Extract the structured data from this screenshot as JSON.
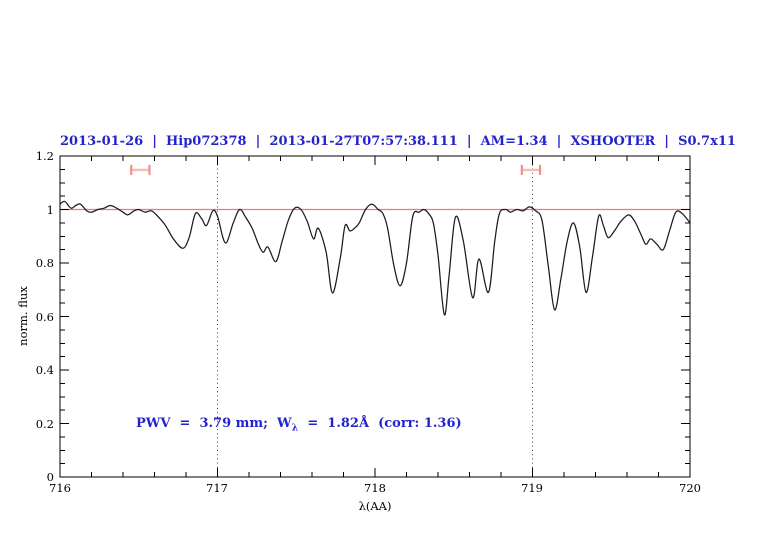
{
  "chart_data": {
    "type": "line",
    "title": "2013-01-26  |  Hip072378  |  2013-01-27T07:57:38.111  |  AM=1.34  |  XSHOOTER  |  S0.7x11",
    "xlabel": "λ(AA)",
    "ylabel": "norm. flux",
    "xlim": [
      716,
      720
    ],
    "ylim": [
      0,
      1.2
    ],
    "x_tick_labels": [
      "716",
      "717",
      "718",
      "719",
      "720"
    ],
    "x_major_ticks": [
      716,
      717,
      718,
      719,
      720
    ],
    "x_minor_step": 0.2,
    "y_tick_labels_top_down": [
      "1.2",
      "1",
      "0.8",
      "0.6",
      "0.4",
      "0.2",
      "0"
    ],
    "y_major_ticks": [
      0,
      0.2,
      0.4,
      0.6,
      0.8,
      1.0,
      1.2
    ],
    "y_minor_step": 0.05,
    "grid": "off",
    "guide_lines_x": [
      717,
      719
    ],
    "continuum_y": 1.0,
    "annotation": {
      "prefix": "PWV  =  3.79 mm;  W",
      "sub": "λ",
      "suffix": "  =  1.82Å  (corr: 1.36)"
    },
    "range_markers": [
      {
        "center": 716.51,
        "half_width": 0.058,
        "y": 1.148,
        "cap_half_height_flux": 0.019
      },
      {
        "center": 718.99,
        "half_width": 0.058,
        "y": 1.148,
        "cap_half_height_flux": 0.019
      }
    ],
    "colors": {
      "title_blue": "#2323cd",
      "annotation_blue": "#2323cd",
      "continuum_red": "#ee7a70",
      "marker_cap_red": "#f0908a",
      "marker_bar_red": "#f8bcb6",
      "spectrum_black": "#1c1c1c",
      "guide_gray": "#3a3a3a",
      "axis_black": "#000000"
    },
    "spectrum": [
      [
        716.0,
        1.02
      ],
      [
        716.03,
        1.03
      ],
      [
        716.07,
        1.005
      ],
      [
        716.1,
        1.015
      ],
      [
        716.13,
        1.02
      ],
      [
        716.17,
        0.995
      ],
      [
        716.2,
        0.99
      ],
      [
        716.24,
        1.0
      ],
      [
        716.28,
        1.005
      ],
      [
        716.32,
        1.015
      ],
      [
        716.36,
        1.005
      ],
      [
        716.4,
        0.99
      ],
      [
        716.43,
        0.98
      ],
      [
        716.47,
        0.995
      ],
      [
        716.5,
        1.0
      ],
      [
        716.54,
        0.99
      ],
      [
        716.58,
        0.995
      ],
      [
        716.62,
        0.975
      ],
      [
        716.67,
        0.94
      ],
      [
        716.72,
        0.89
      ],
      [
        716.78,
        0.855
      ],
      [
        716.82,
        0.895
      ],
      [
        716.86,
        0.985
      ],
      [
        716.9,
        0.965
      ],
      [
        716.93,
        0.94
      ],
      [
        716.97,
        0.995
      ],
      [
        717.0,
        0.975
      ],
      [
        717.05,
        0.875
      ],
      [
        717.1,
        0.95
      ],
      [
        717.14,
        1.0
      ],
      [
        717.18,
        0.97
      ],
      [
        717.22,
        0.93
      ],
      [
        717.26,
        0.87
      ],
      [
        717.29,
        0.84
      ],
      [
        717.32,
        0.86
      ],
      [
        717.37,
        0.805
      ],
      [
        717.41,
        0.88
      ],
      [
        717.45,
        0.96
      ],
      [
        717.49,
        1.005
      ],
      [
        717.53,
        1.0
      ],
      [
        717.57,
        0.955
      ],
      [
        717.61,
        0.89
      ],
      [
        717.64,
        0.93
      ],
      [
        717.69,
        0.84
      ],
      [
        717.73,
        0.688
      ],
      [
        717.78,
        0.82
      ],
      [
        717.81,
        0.94
      ],
      [
        717.84,
        0.92
      ],
      [
        717.87,
        0.93
      ],
      [
        717.9,
        0.95
      ],
      [
        717.94,
        1.0
      ],
      [
        717.98,
        1.02
      ],
      [
        718.02,
        1.0
      ],
      [
        718.05,
        0.985
      ],
      [
        718.08,
        0.93
      ],
      [
        718.12,
        0.79
      ],
      [
        718.16,
        0.715
      ],
      [
        718.2,
        0.8
      ],
      [
        718.24,
        0.975
      ],
      [
        718.28,
        0.99
      ],
      [
        718.31,
        1.0
      ],
      [
        718.34,
        0.985
      ],
      [
        718.37,
        0.95
      ],
      [
        718.4,
        0.83
      ],
      [
        718.44,
        0.607
      ],
      [
        718.47,
        0.75
      ],
      [
        718.51,
        0.97
      ],
      [
        718.56,
        0.885
      ],
      [
        718.62,
        0.67
      ],
      [
        718.66,
        0.815
      ],
      [
        718.72,
        0.69
      ],
      [
        718.76,
        0.88
      ],
      [
        718.79,
        0.985
      ],
      [
        718.83,
        1.0
      ],
      [
        718.86,
        0.99
      ],
      [
        718.9,
        1.0
      ],
      [
        718.94,
        0.995
      ],
      [
        718.98,
        1.01
      ],
      [
        719.02,
        0.995
      ],
      [
        719.06,
        0.96
      ],
      [
        719.1,
        0.79
      ],
      [
        719.14,
        0.625
      ],
      [
        719.18,
        0.74
      ],
      [
        719.22,
        0.88
      ],
      [
        719.26,
        0.95
      ],
      [
        719.3,
        0.86
      ],
      [
        719.34,
        0.69
      ],
      [
        719.38,
        0.82
      ],
      [
        719.42,
        0.975
      ],
      [
        719.45,
        0.94
      ],
      [
        719.48,
        0.895
      ],
      [
        719.52,
        0.92
      ],
      [
        719.56,
        0.955
      ],
      [
        719.61,
        0.98
      ],
      [
        719.65,
        0.955
      ],
      [
        719.69,
        0.905
      ],
      [
        719.72,
        0.87
      ],
      [
        719.75,
        0.89
      ],
      [
        719.79,
        0.87
      ],
      [
        719.83,
        0.85
      ],
      [
        719.87,
        0.92
      ],
      [
        719.91,
        0.99
      ],
      [
        719.95,
        0.985
      ],
      [
        720.0,
        0.95
      ]
    ]
  }
}
